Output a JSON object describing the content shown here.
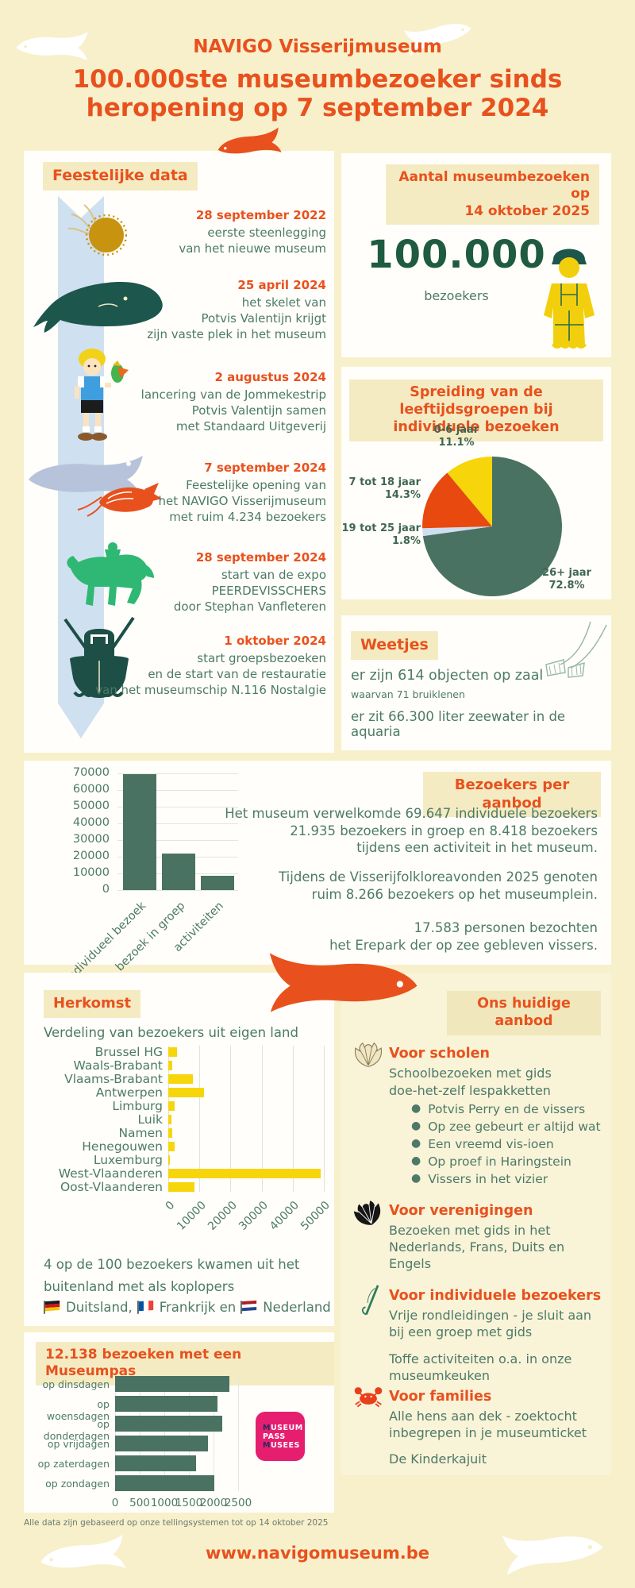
{
  "header": {
    "brand": "NAVIGO Visserijmuseum",
    "title_line1": "100.000ste museumbezoeker sinds",
    "title_line2": "heropening op 7 september 2024"
  },
  "colors": {
    "accent_orange": "#e8511d",
    "text_green": "#4d7a68",
    "dark_green": "#1f5b40",
    "bar_green": "#4a7263",
    "yellow": "#f6d50b",
    "ribbon_blue": "#cfe0f0",
    "pie_lightblue": "#cfdef1",
    "museumpas_pink": "#e61e70",
    "background_cream": "#f7f0cb"
  },
  "feestelijke_data": {
    "title": "Feestelijke data",
    "events": [
      {
        "icon": "jellyfish-icon",
        "date": "28 september 2022",
        "lines": [
          "eerste steenlegging",
          "van het nieuwe museum"
        ]
      },
      {
        "icon": "whale-icon",
        "date": "25 april 2024",
        "lines": [
          "het skelet van",
          "Potvis Valentijn krijgt",
          "zijn vaste plek in het museum"
        ]
      },
      {
        "icon": "jommeke-icon",
        "date": "2 augustus 2024",
        "lines": [
          "lancering van de Jommekestrip",
          "Potvis Valentijn samen",
          "met Standaard Uitgeverij"
        ]
      },
      {
        "icon": "fish-shrimp-icon",
        "date": "7 september 2024",
        "lines": [
          "Feestelijke opening van",
          "het NAVIGO Visserijmuseum",
          "met ruim 4.234 bezoekers"
        ]
      },
      {
        "icon": "horse-rider-icon",
        "date": "28 september 2024",
        "lines": [
          "start van de expo",
          "PEERDEVISSCHERS",
          "door Stephan Vanfleteren"
        ]
      },
      {
        "icon": "boat-icon",
        "date": "1 oktober 2024",
        "lines": [
          "start groepsbezoeken",
          "en de start van de restauratie",
          "van het museumschip N.116 Nostalgie"
        ]
      }
    ]
  },
  "bezoeken_teller": {
    "title_line1": "Aantal museumbezoeken op",
    "title_line2": "14 oktober 2025",
    "count": "100.000",
    "count_label": "bezoekers"
  },
  "weetjes": {
    "title": "Weetjes",
    "fact1": "er zijn 614 objecten op zaal",
    "fact1_sub": "waarvan 71 bruiklenen",
    "fact2": "er zit 66.300 liter zeewater in de aquaria"
  },
  "bezoekers_per_aanbod": {
    "title": "Bezoekers per aanbod",
    "p1": [
      "Het museum verwelkomde 69.647 individuele bezoekers",
      "21.935 bezoekers in groep en 8.418 bezoekers",
      "tijdens een activiteit in het museum."
    ],
    "p2": [
      "Tijdens de Visserijfolkloreavonden 2025 genoten",
      "ruim 8.266 bezoekers op het museumplein."
    ],
    "p3": [
      "17.583 personen bezochten",
      "het Erepark der op zee gebleven vissers."
    ]
  },
  "herkomst": {
    "title": "Herkomst",
    "subtitle": "Verdeling van bezoekers uit eigen land",
    "note_line1": "4 op de 100 bezoekers kwamen uit het",
    "note_line2": "buitenland met als koplopers",
    "countries": [
      {
        "flag": "flag-germany-icon",
        "name": "Duitsland,"
      },
      {
        "flag": "flag-france-icon",
        "name": "Frankrijk en"
      },
      {
        "flag": "flag-netherlands-icon",
        "name": "Nederland"
      }
    ]
  },
  "museumpas": {
    "title": "12.138 bezoeken met een Museumpas",
    "logo_lines": [
      "MUSEUM",
      "PASS",
      "MUSEES"
    ]
  },
  "aanbod": {
    "title": "Ons huidige aanbod",
    "sections": [
      {
        "icon": "scallop-shell-icon",
        "title": "Voor scholen",
        "lines": [
          "Schoolbezoeken met gids",
          "doe-het-zelf lespakketten"
        ],
        "bullets": [
          "Potvis Perry en de vissers",
          "Op zee gebeurt er altijd wat",
          "Een vreemd vis-ioen",
          "Op proef in Haringstein",
          "Vissers in het vizier"
        ]
      },
      {
        "icon": "black-shell-icon",
        "title": "Voor verenigingen",
        "lines": [
          "Bezoeken met gids in het",
          "Nederlands, Frans, Duits en",
          "Engels"
        ]
      },
      {
        "icon": "fishing-rod-icon",
        "title": "Voor individuele bezoekers",
        "lines": [
          "Vrije rondleidingen - je sluit aan",
          "bij een groep met gids",
          "Toffe activiteiten o.a. in onze",
          "museumkeuken"
        ]
      },
      {
        "icon": "crab-icon",
        "title": "Voor families",
        "lines": [
          "Alle hens aan dek - zoektocht",
          "inbegrepen in je museumticket",
          "De Kinderkajuit"
        ]
      }
    ]
  },
  "footer": {
    "note": "Alle data zijn gebaseerd op onze tellingsystemen tot op 14 oktober 2025",
    "website": "www.navigomuseum.be"
  },
  "chart_data": [
    {
      "id": "leeftijdsgroepen",
      "type": "pie",
      "title": "Spreiding van de leeftijdsgroepen bij individuele bezoeken",
      "title_line1": "Spreiding van de leeftijdsgroepen bij",
      "title_line2": "individuele bezoeken",
      "start": "top, clockwise",
      "slices": [
        {
          "label": "26+ jaar",
          "pct": 72.8,
          "pct_label": "72.8%",
          "color": "#4a7263"
        },
        {
          "label": "19 tot 25 jaar",
          "pct": 1.8,
          "pct_label": "1.8%",
          "color": "#cfdef1"
        },
        {
          "label": "7 tot 18 jaar",
          "pct": 14.3,
          "pct_label": "14.3%",
          "color": "#e8490f"
        },
        {
          "label": "0-6 jaar",
          "pct": 11.1,
          "pct_label": "11.1%",
          "color": "#f6d50b"
        }
      ]
    },
    {
      "id": "bezoekers-per-aanbod",
      "type": "bar",
      "categories": [
        "individueel bezoek",
        "bezoek in groep",
        "activiteiten"
      ],
      "values": [
        69647,
        21935,
        8418
      ],
      "ylim": [
        0,
        70000
      ],
      "yticks": [
        0,
        10000,
        20000,
        30000,
        40000,
        50000,
        60000,
        70000
      ],
      "bar_color": "#4a7263",
      "grid": true
    },
    {
      "id": "herkomst-provincies",
      "type": "hbar",
      "categories": [
        "Brussel HG",
        "Waals-Brabant",
        "Vlaams-Brabant",
        "Antwerpen",
        "Limburg",
        "Luik",
        "Namen",
        "Henegouwen",
        "Luxemburg",
        "West-Vlaanderen",
        "Oost-Vlaanderen"
      ],
      "values": [
        2800,
        1300,
        8000,
        11500,
        2000,
        1100,
        1200,
        2000,
        400,
        49000,
        8300
      ],
      "xlim": [
        0,
        50000
      ],
      "xticks": [
        0,
        10000,
        20000,
        30000,
        40000,
        50000
      ],
      "bar_color": "#f6d50b",
      "grid": true
    },
    {
      "id": "museumpas-dagen",
      "type": "hbar",
      "title": "12.138 bezoeken met een Museumpas",
      "categories": [
        "op dinsdagen",
        "op woensdagen",
        "op donderdagen",
        "op vrijdagen",
        "op zaterdagen",
        "op zondagen"
      ],
      "values": [
        2320,
        2080,
        2180,
        1890,
        1650,
        2018
      ],
      "xlim": [
        0,
        2500
      ],
      "xticks": [
        0,
        500,
        1000,
        1500,
        2000,
        2500
      ],
      "bar_color": "#4a7263",
      "grid": true
    }
  ]
}
